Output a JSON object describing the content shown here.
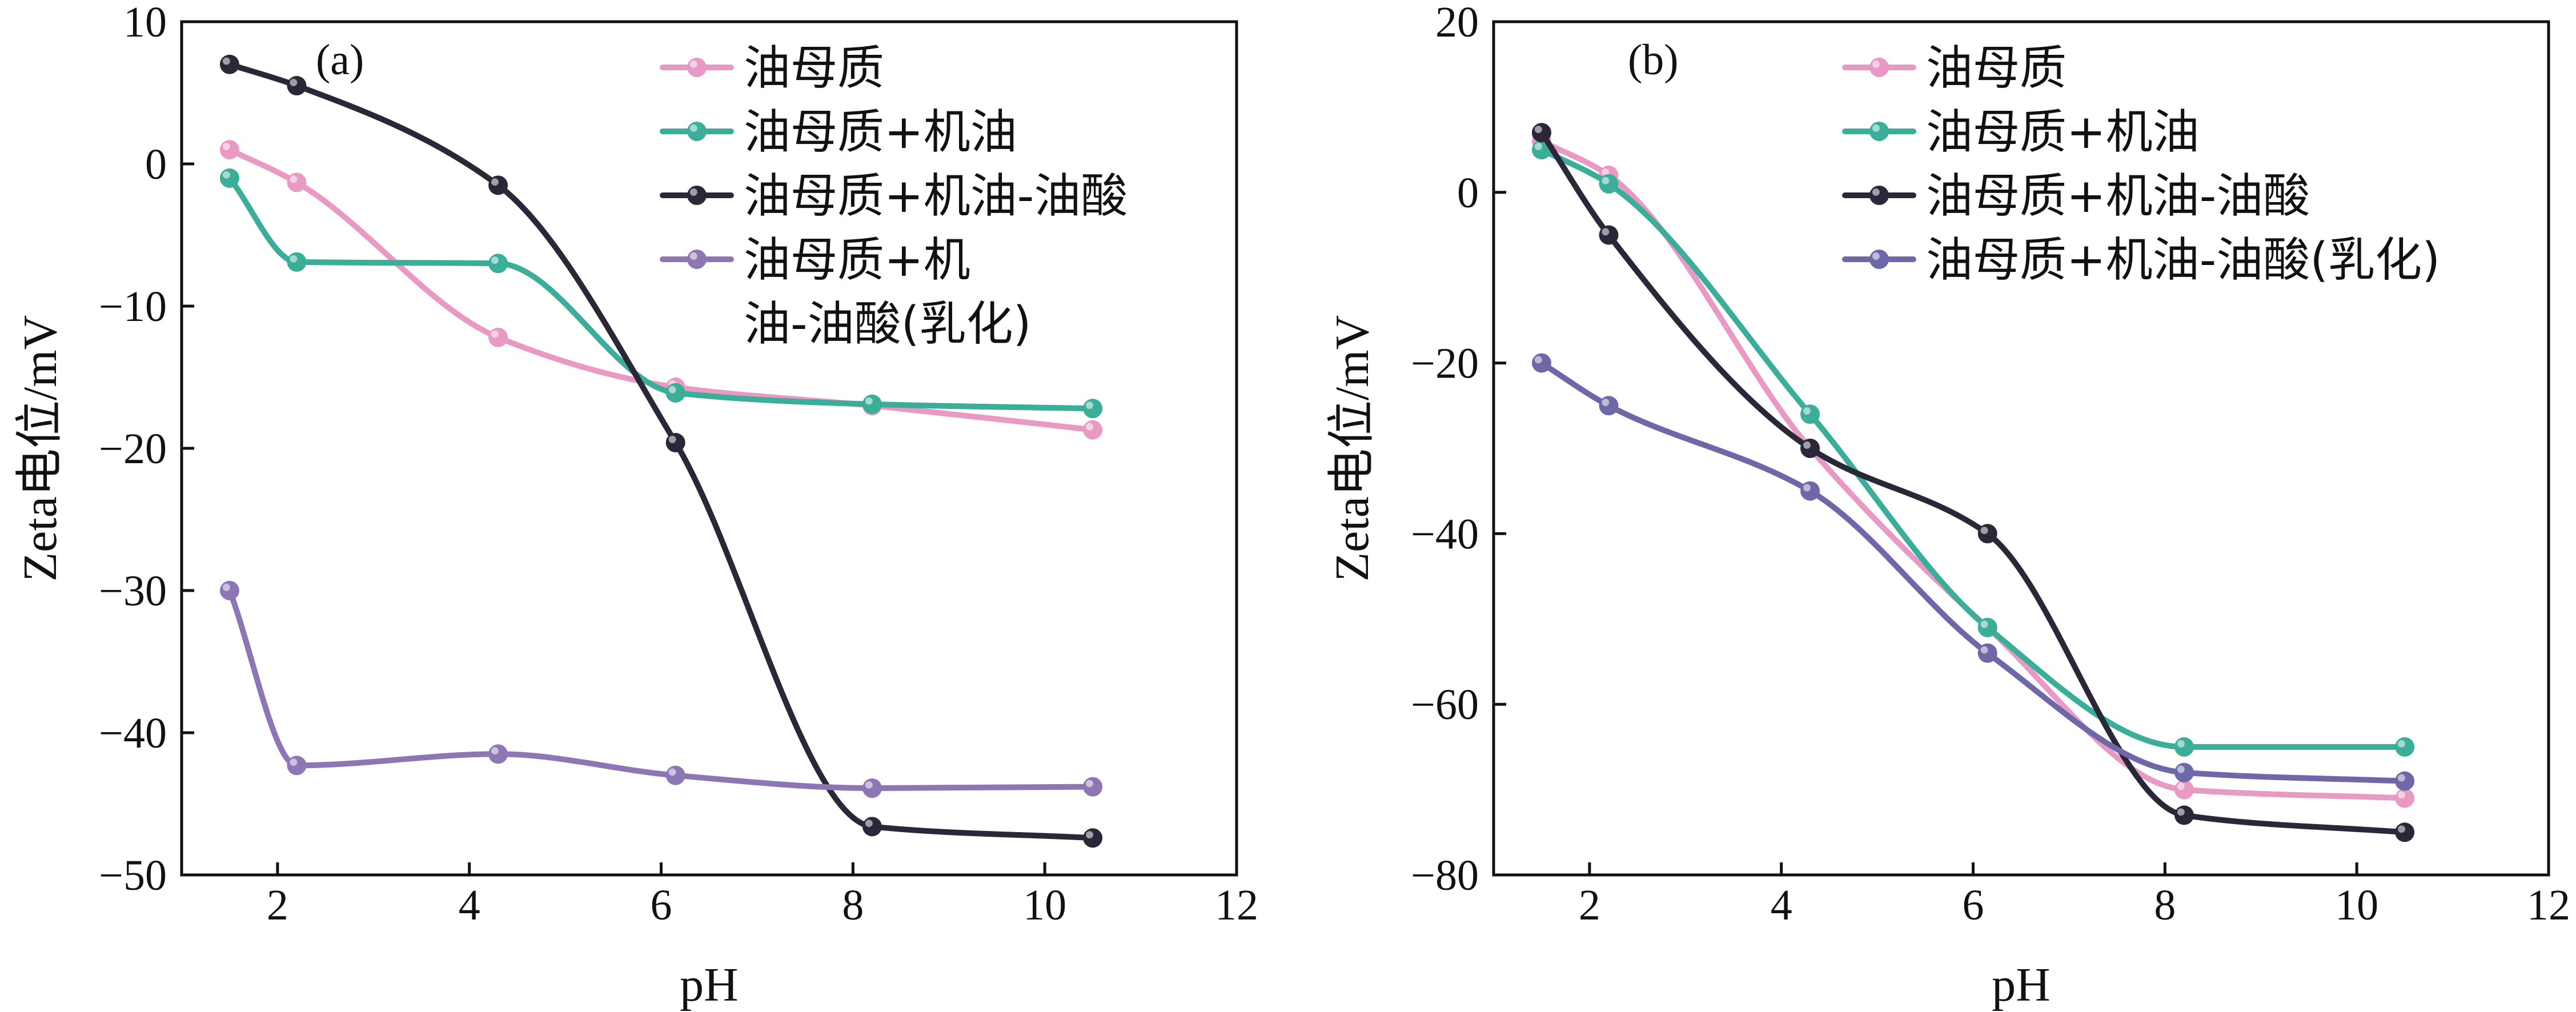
{
  "chart_data": [
    {
      "type": "scatter",
      "panel_label": "(a)",
      "xlabel": "pH",
      "ylabel": "Zeta电位/mV",
      "xlim": [
        1,
        12
      ],
      "ylim": [
        -50,
        10
      ],
      "xticks": [
        2,
        4,
        6,
        8,
        10,
        12
      ],
      "xtick_labels": [
        "2",
        "4",
        "6",
        "8",
        "10",
        "12"
      ],
      "yticks": [
        10,
        0,
        -10,
        -20,
        -30,
        -40,
        -50
      ],
      "ytick_labels": [
        "10",
        "0",
        "−10",
        "−20",
        "−30",
        "−40",
        "−50"
      ],
      "legend_position": "top-right",
      "series": [
        {
          "name": "油母质",
          "legend_lines": [
            "油母质"
          ],
          "color": "#E99AC4",
          "x": [
            1.5,
            2.2,
            4.3,
            6.15,
            8.2,
            10.5
          ],
          "y": [
            1,
            -1.3,
            -12.2,
            -15.7,
            -17,
            -18.7
          ]
        },
        {
          "name": "油母质+机油",
          "legend_lines": [
            "油母质+机油"
          ],
          "color": "#3AAE98",
          "x": [
            1.5,
            2.2,
            4.3,
            6.15,
            8.2,
            10.5
          ],
          "y": [
            -1,
            -6.9,
            -7,
            -16.1,
            -16.9,
            -17.2
          ]
        },
        {
          "name": "油母质+机油-油酸",
          "legend_lines": [
            "油母质+机油-油酸"
          ],
          "color": "#2A2838",
          "x": [
            1.5,
            2.2,
            4.3,
            6.15,
            8.2,
            10.5
          ],
          "y": [
            7,
            5.5,
            -1.5,
            -19.6,
            -46.6,
            -47.4
          ]
        },
        {
          "name": "油母质+机油-油酸(乳化)",
          "legend_lines": [
            "油母质+机",
            "油-油酸(乳化)"
          ],
          "color": "#8E76B5",
          "x": [
            1.5,
            2.2,
            4.3,
            6.15,
            8.2,
            10.5
          ],
          "y": [
            -30,
            -42.3,
            -41.5,
            -43,
            -43.9,
            -43.8
          ]
        }
      ]
    },
    {
      "type": "scatter",
      "panel_label": "(b)",
      "xlabel": "pH",
      "ylabel": "Zeta电位/mV",
      "xlim": [
        1,
        12
      ],
      "ylim": [
        -80,
        20
      ],
      "xticks": [
        2,
        4,
        6,
        8,
        10,
        12
      ],
      "xtick_labels": [
        "2",
        "4",
        "6",
        "8",
        "10",
        "12"
      ],
      "yticks": [
        20,
        0,
        -20,
        -40,
        -60,
        -80
      ],
      "ytick_labels": [
        "20",
        "0",
        "−20",
        "−40",
        "−60",
        "−80"
      ],
      "legend_position": "top-right",
      "series": [
        {
          "name": "油母质",
          "legend_lines": [
            "油母质"
          ],
          "color": "#E99AC4",
          "x": [
            1.5,
            2.2,
            4.3,
            6.15,
            8.2,
            10.5
          ],
          "y": [
            6,
            2,
            -30,
            -51,
            -70,
            -71
          ]
        },
        {
          "name": "油母质+机油",
          "legend_lines": [
            "油母质+机油"
          ],
          "color": "#3AAE98",
          "x": [
            1.5,
            2.2,
            4.3,
            6.15,
            8.2,
            10.5
          ],
          "y": [
            5,
            1,
            -26,
            -51,
            -65,
            -65
          ]
        },
        {
          "name": "油母质+机油-油酸",
          "legend_lines": [
            "油母质+机油-油酸"
          ],
          "color": "#2A2838",
          "x": [
            1.5,
            2.2,
            4.3,
            6.15,
            8.2,
            10.5
          ],
          "y": [
            7,
            -5,
            -30,
            -40,
            -73,
            -75
          ]
        },
        {
          "name": "油母质+机油-油酸(乳化)",
          "legend_lines": [
            "油母质+机油-油酸(乳化)"
          ],
          "color": "#6E68A8",
          "x": [
            1.5,
            2.2,
            4.3,
            6.15,
            8.2,
            10.5
          ],
          "y": [
            -20,
            -25,
            -35,
            -54,
            -68,
            -69
          ]
        }
      ]
    }
  ]
}
